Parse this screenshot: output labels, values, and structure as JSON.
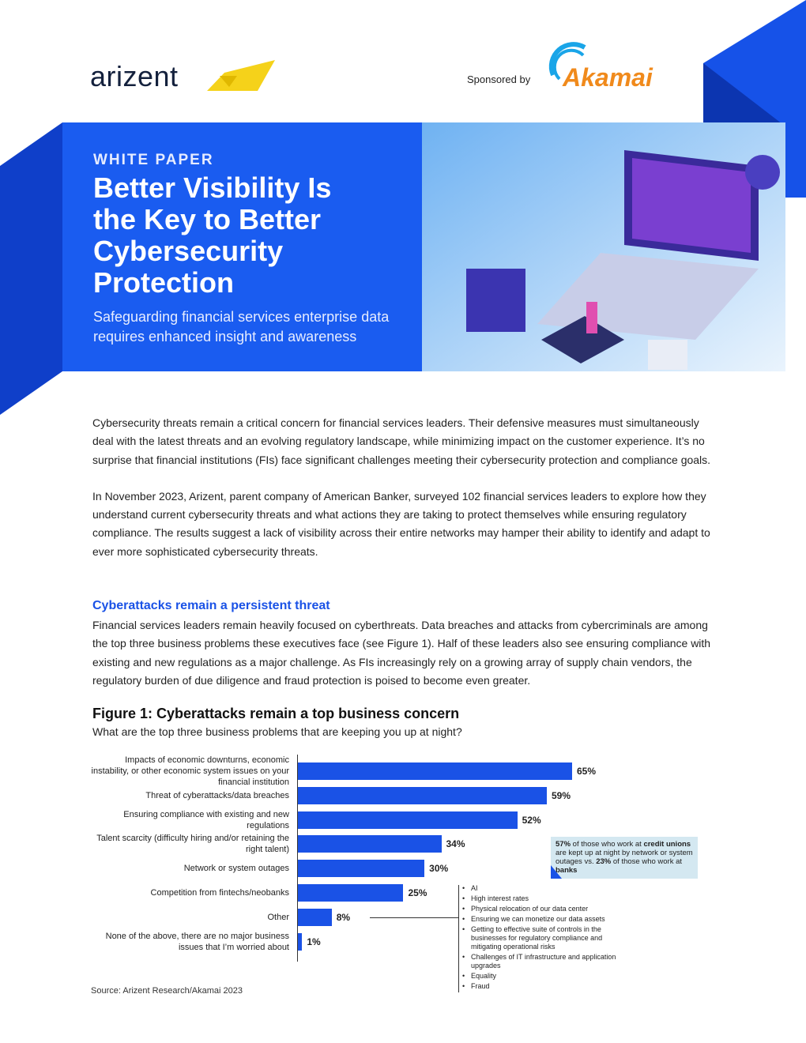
{
  "header": {
    "logo": "arizent",
    "sponsor_label": "Sponsored by",
    "sponsor": "Akamai"
  },
  "hero": {
    "kicker": "WHITE PAPER",
    "title": "Better Visibility Is the Key to Better Cybersecurity Protection",
    "subtitle": "Safeguarding financial services enterprise data requires enhanced insight and awareness"
  },
  "intro": [
    "Cybersecurity threats remain a critical concern for financial services leaders. Their defensive measures must simultaneously deal with the latest threats and an evolving regulatory landscape, while minimizing impact on the customer experience. It’s no surprise that financial institutions (FIs) face significant challenges meeting their cybersecurity protection and compliance goals.",
    "In November 2023, Arizent, parent company of American Banker, surveyed 102 financial services leaders to explore how they understand current cybersecurity threats and what actions they are taking to protect themselves while ensuring regulatory compliance. The results suggest a lack of visibility across their entire networks may hamper their ability to identify and adapt to ever more sophisticated cybersecurity threats."
  ],
  "section": {
    "heading": "Cyberattacks remain a persistent threat",
    "body": "Financial services leaders remain heavily focused on cyberthreats. Data breaches and attacks from cybercriminals are among the top three business problems these executives face (see Figure 1). Half of these leaders also see ensuring compliance with existing and new regulations as a major challenge. As FIs increasingly rely on a growing array of supply chain vendors, the regulatory burden of due diligence and fraud protection is poised to become even greater."
  },
  "figure": {
    "title": "Figure 1: Cyberattacks remain a top business concern",
    "question": "What are the top three business problems that are keeping you up at night?",
    "source": "Source: Arizent Research/Akamai 2023",
    "callout": [
      {
        "text": "57%",
        "bold": true
      },
      {
        "text": " of those who work at ",
        "bold": false
      },
      {
        "text": "credit unions",
        "bold": true
      },
      {
        "text": " are kept up at night by network or system outages vs. ",
        "bold": false
      },
      {
        "text": "23%",
        "bold": true
      },
      {
        "text": " of those who work at ",
        "bold": false
      },
      {
        "text": "banks",
        "bold": true
      }
    ],
    "other_breakdown": [
      "AI",
      "High interest rates",
      "Physical relocation of our data center",
      "Ensuring we can monetize our data assets",
      "Getting to effective suite of controls in the businesses for regulatory compliance and mitigating operational risks",
      "Challenges of IT infrastructure and application upgrades",
      "Equality",
      "Fraud"
    ]
  },
  "chart_data": {
    "type": "bar",
    "orientation": "horizontal",
    "categories": [
      "Impacts of economic downturns, economic instability, or other economic system issues on your financial institution",
      "Threat of cyberattacks/data breaches",
      "Ensuring compliance with existing and new regulations",
      "Talent scarcity (difficulty hiring and/or retaining the right talent)",
      "Network or system outages",
      "Competition from fintechs/neobanks",
      "Other",
      "None of the above, there are no major business issues that I’m worried about"
    ],
    "values": [
      65,
      59,
      52,
      34,
      30,
      25,
      8,
      1
    ],
    "value_labels": [
      "65%",
      "59%",
      "52%",
      "34%",
      "30%",
      "25%",
      "8%",
      "1%"
    ],
    "color": "#1a52e6"
  }
}
